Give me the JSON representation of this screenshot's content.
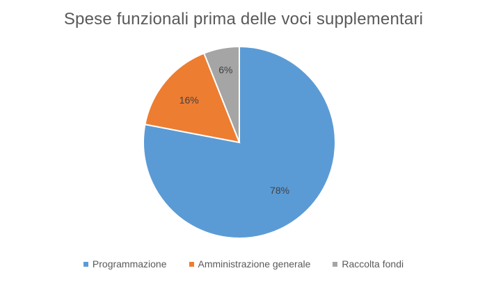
{
  "chart_data": {
    "type": "pie",
    "title": "Spese funzionali prima delle voci supplementari",
    "slices": [
      {
        "name": "Programmazione",
        "value": 78,
        "label": "78%",
        "color": "#5b9bd5"
      },
      {
        "name": "Amministrazione generale",
        "value": 16,
        "label": "16%",
        "color": "#ed7d31"
      },
      {
        "name": "Raccolta fondi",
        "value": 6,
        "label": "6%",
        "color": "#a5a5a5"
      }
    ],
    "legend_position": "bottom",
    "start_angle": "top, clockwise"
  }
}
